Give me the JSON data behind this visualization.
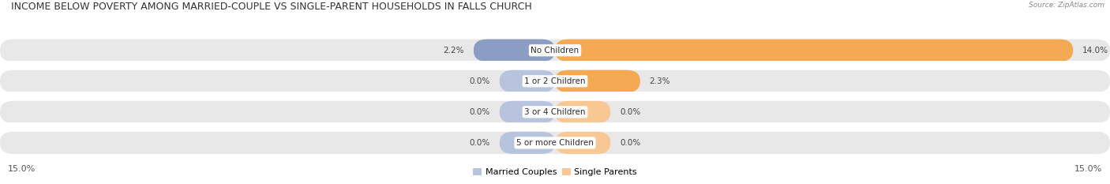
{
  "title": "INCOME BELOW POVERTY AMONG MARRIED-COUPLE VS SINGLE-PARENT HOUSEHOLDS IN FALLS CHURCH",
  "source": "Source: ZipAtlas.com",
  "categories": [
    "No Children",
    "1 or 2 Children",
    "3 or 4 Children",
    "5 or more Children"
  ],
  "married_values": [
    2.2,
    0.0,
    0.0,
    0.0
  ],
  "single_values": [
    14.0,
    2.3,
    0.0,
    0.0
  ],
  "min_bar_width": 1.5,
  "max_val": 15.0,
  "married_color": "#8b9dc3",
  "single_color": "#f5a952",
  "married_color_light": "#b8c3de",
  "single_color_light": "#f8c894",
  "bg_bar": "#e8e8e8",
  "bg_row": "#f2f2f2",
  "bg_figure": "#ffffff",
  "title_fontsize": 9.0,
  "label_fontsize": 7.5,
  "tick_fontsize": 8.0,
  "legend_fontsize": 8.0,
  "axis_label_left": "15.0%",
  "axis_label_right": "15.0%"
}
